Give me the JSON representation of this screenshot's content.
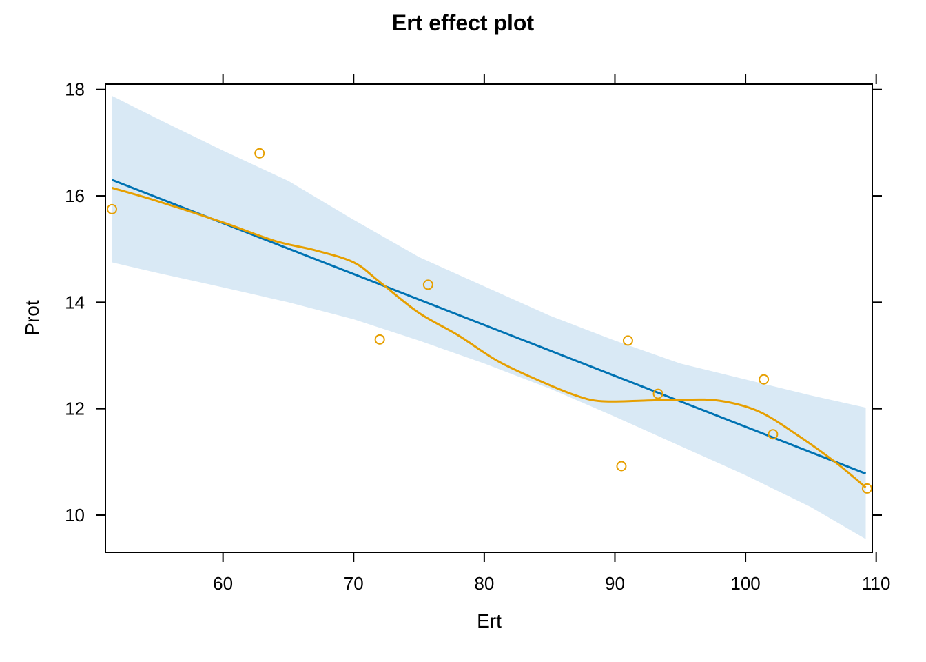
{
  "chart_data": {
    "type": "line",
    "title": "Ert effect plot",
    "xlabel": "Ert",
    "ylabel": "Prot",
    "xlim": [
      51.0,
      109.7
    ],
    "ylim": [
      9.3,
      18.1
    ],
    "xticks": [
      60,
      70,
      80,
      90,
      100,
      110
    ],
    "yticks": [
      10,
      12,
      14,
      16,
      18
    ],
    "grid": false,
    "legend": "none",
    "colors": {
      "fit": "#0072B2",
      "band": "#d9e9f5",
      "smooth": "#E69F00",
      "points": "#E69F00",
      "frame": "#000000"
    },
    "series": [
      {
        "kind": "fit-line",
        "x": [
          51.5,
          109.2
        ],
        "y": [
          16.3,
          10.78
        ]
      },
      {
        "kind": "confidence-band",
        "x": [
          51.5,
          55,
          60,
          65,
          70,
          75,
          80,
          85,
          90,
          95,
          100,
          105,
          109.2
        ],
        "lower": [
          14.75,
          14.55,
          14.28,
          14.0,
          13.68,
          13.28,
          12.85,
          12.38,
          11.85,
          11.3,
          10.75,
          10.15,
          9.55
        ],
        "upper": [
          17.88,
          17.45,
          16.85,
          16.28,
          15.55,
          14.85,
          14.3,
          13.75,
          13.28,
          12.85,
          12.55,
          12.25,
          12.02
        ]
      },
      {
        "kind": "smooth",
        "x": [
          51.5,
          55,
          60,
          64,
          67,
          70,
          72,
          75,
          78,
          81,
          84,
          87,
          89,
          92,
          95,
          98,
          101,
          104,
          107,
          109.2
        ],
        "y": [
          16.15,
          15.9,
          15.5,
          15.15,
          14.98,
          14.75,
          14.38,
          13.8,
          13.38,
          12.9,
          12.55,
          12.25,
          12.14,
          12.15,
          12.17,
          12.15,
          11.95,
          11.5,
          10.97,
          10.52
        ]
      },
      {
        "kind": "points",
        "x": [
          51.5,
          62.8,
          72.0,
          75.7,
          90.5,
          91.0,
          93.3,
          101.4,
          102.1,
          109.3
        ],
        "y": [
          15.75,
          16.8,
          13.3,
          14.33,
          10.92,
          13.28,
          12.28,
          12.55,
          11.52,
          10.5
        ]
      }
    ]
  }
}
